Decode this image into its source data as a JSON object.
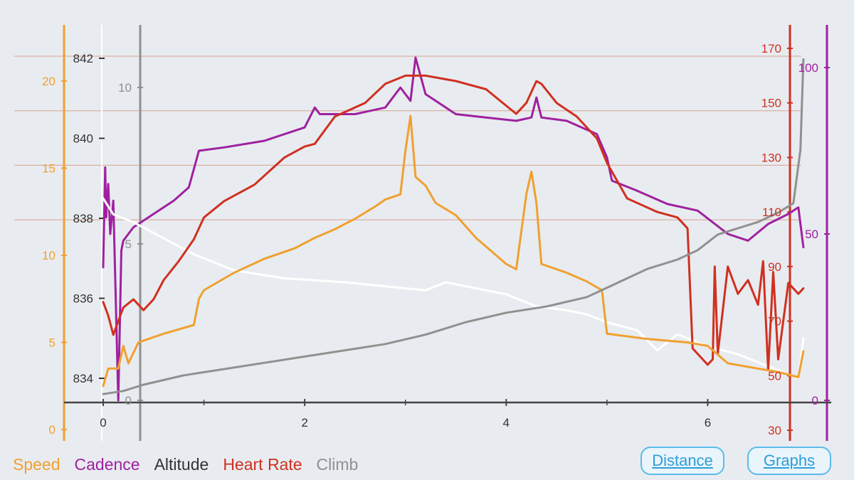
{
  "colors": {
    "speed": "#f0a030",
    "cadence": "#a020a0",
    "altitude": "#333333",
    "heart_rate": "#d03020",
    "climb": "#909090",
    "white_trace": "#ffffff",
    "button": "#2a9fd8"
  },
  "legend": [
    {
      "key": "speed",
      "label": "Speed"
    },
    {
      "key": "cadence",
      "label": "Cadence"
    },
    {
      "key": "altitude",
      "label": "Altitude"
    },
    {
      "key": "heart_rate",
      "label": "Heart Rate"
    },
    {
      "key": "climb",
      "label": "Climb"
    }
  ],
  "buttons": {
    "distance": "Distance",
    "graphs": "Graphs"
  },
  "chart_data": {
    "type": "line",
    "x_axis": {
      "range": [
        0,
        7
      ],
      "ticks": [
        0,
        2,
        4,
        6
      ],
      "labels": [
        "0",
        "2",
        "4",
        "6"
      ]
    },
    "axes": {
      "speed": {
        "range": [
          0,
          23
        ],
        "ticks": [
          0,
          5,
          10,
          15,
          20
        ]
      },
      "altitude": {
        "range": [
          832.5,
          843.2
        ],
        "ticks": [
          834,
          836,
          838,
          840,
          842
        ]
      },
      "climb": {
        "range": [
          0,
          11
        ],
        "ticks": [
          0,
          5,
          10
        ]
      },
      "heart_rate": {
        "range": [
          24,
          182
        ],
        "ticks": [
          30,
          50,
          70,
          90,
          110,
          130,
          150,
          170
        ]
      },
      "cadence": {
        "range": [
          0,
          108
        ],
        "ticks": [
          0,
          50,
          100
        ]
      }
    },
    "series": [
      {
        "name": "Cadence",
        "key": "cadence",
        "axis": "cadence",
        "points": [
          [
            0,
            40
          ],
          [
            0.02,
            70
          ],
          [
            0.03,
            55
          ],
          [
            0.05,
            65
          ],
          [
            0.07,
            50
          ],
          [
            0.1,
            60
          ],
          [
            0.15,
            0
          ],
          [
            0.18,
            45
          ],
          [
            0.2,
            48
          ],
          [
            0.3,
            52
          ],
          [
            0.5,
            56
          ],
          [
            0.7,
            60
          ],
          [
            0.85,
            64
          ],
          [
            0.95,
            75
          ],
          [
            1.2,
            76
          ],
          [
            1.6,
            78
          ],
          [
            2.0,
            82
          ],
          [
            2.1,
            88
          ],
          [
            2.15,
            86
          ],
          [
            2.3,
            86
          ],
          [
            2.5,
            86
          ],
          [
            2.8,
            88
          ],
          [
            2.95,
            94
          ],
          [
            3.05,
            90
          ],
          [
            3.1,
            103
          ],
          [
            3.2,
            92
          ],
          [
            3.5,
            86
          ],
          [
            3.8,
            85
          ],
          [
            4.1,
            84
          ],
          [
            4.25,
            85
          ],
          [
            4.3,
            91
          ],
          [
            4.35,
            85
          ],
          [
            4.6,
            84
          ],
          [
            4.9,
            80
          ],
          [
            5.0,
            73
          ],
          [
            5.05,
            66
          ],
          [
            5.3,
            63
          ],
          [
            5.6,
            59
          ],
          [
            5.9,
            57
          ],
          [
            6.2,
            50
          ],
          [
            6.4,
            48
          ],
          [
            6.6,
            53
          ],
          [
            6.8,
            56
          ],
          [
            6.9,
            58
          ],
          [
            6.95,
            46
          ]
        ]
      },
      {
        "name": "Altitude",
        "key": "altitude",
        "axis": "altitude",
        "points": [
          [
            0,
            838.5
          ],
          [
            0.1,
            838.1
          ],
          [
            0.3,
            837.9
          ],
          [
            0.6,
            837.5
          ],
          [
            0.9,
            837.1
          ],
          [
            1.3,
            836.7
          ],
          [
            1.8,
            836.5
          ],
          [
            2.4,
            836.4
          ],
          [
            2.8,
            836.3
          ],
          [
            3.2,
            836.2
          ],
          [
            3.4,
            836.4
          ],
          [
            3.6,
            836.3
          ],
          [
            4.0,
            836.1
          ],
          [
            4.3,
            835.8
          ],
          [
            4.6,
            835.7
          ],
          [
            4.8,
            835.6
          ],
          [
            5.0,
            835.4
          ],
          [
            5.3,
            835.2
          ],
          [
            5.5,
            834.7
          ],
          [
            5.7,
            835.1
          ],
          [
            6.0,
            834.8
          ],
          [
            6.3,
            834.6
          ],
          [
            6.6,
            834.3
          ],
          [
            6.9,
            834.0
          ],
          [
            6.95,
            835.0
          ]
        ]
      },
      {
        "name": "Heart Rate",
        "key": "heart_rate",
        "axis": "heart_rate",
        "points": [
          [
            0,
            77
          ],
          [
            0.05,
            72
          ],
          [
            0.1,
            65
          ],
          [
            0.15,
            70
          ],
          [
            0.2,
            75
          ],
          [
            0.3,
            78
          ],
          [
            0.4,
            74
          ],
          [
            0.5,
            78
          ],
          [
            0.6,
            85
          ],
          [
            0.75,
            92
          ],
          [
            0.9,
            100
          ],
          [
            1.0,
            108
          ],
          [
            1.2,
            114
          ],
          [
            1.5,
            120
          ],
          [
            1.8,
            130
          ],
          [
            2.0,
            134
          ],
          [
            2.1,
            135
          ],
          [
            2.3,
            145
          ],
          [
            2.6,
            150
          ],
          [
            2.8,
            157
          ],
          [
            3.0,
            160
          ],
          [
            3.2,
            160
          ],
          [
            3.5,
            158
          ],
          [
            3.8,
            155
          ],
          [
            4.0,
            149
          ],
          [
            4.1,
            146
          ],
          [
            4.2,
            150
          ],
          [
            4.3,
            158
          ],
          [
            4.35,
            157
          ],
          [
            4.5,
            150
          ],
          [
            4.7,
            145
          ],
          [
            4.9,
            137
          ],
          [
            5.0,
            128
          ],
          [
            5.2,
            115
          ],
          [
            5.5,
            110
          ],
          [
            5.7,
            108
          ],
          [
            5.8,
            104
          ],
          [
            5.85,
            60
          ],
          [
            6.0,
            54
          ],
          [
            6.05,
            56
          ],
          [
            6.07,
            90
          ],
          [
            6.1,
            58
          ],
          [
            6.2,
            90
          ],
          [
            6.3,
            80
          ],
          [
            6.4,
            85
          ],
          [
            6.5,
            76
          ],
          [
            6.55,
            92
          ],
          [
            6.6,
            52
          ],
          [
            6.65,
            88
          ],
          [
            6.7,
            56
          ],
          [
            6.8,
            84
          ],
          [
            6.9,
            80
          ],
          [
            6.95,
            82
          ]
        ]
      },
      {
        "name": "Speed",
        "key": "speed",
        "axis": "speed",
        "points": [
          [
            0,
            2.5
          ],
          [
            0.05,
            3.5
          ],
          [
            0.15,
            3.5
          ],
          [
            0.2,
            4.8
          ],
          [
            0.25,
            3.8
          ],
          [
            0.35,
            5.0
          ],
          [
            0.6,
            5.5
          ],
          [
            0.9,
            6.0
          ],
          [
            0.95,
            7.5
          ],
          [
            1.0,
            8.0
          ],
          [
            1.3,
            9.0
          ],
          [
            1.6,
            9.8
          ],
          [
            1.9,
            10.4
          ],
          [
            2.1,
            11.0
          ],
          [
            2.3,
            11.5
          ],
          [
            2.5,
            12.1
          ],
          [
            2.7,
            12.8
          ],
          [
            2.8,
            13.2
          ],
          [
            2.95,
            13.5
          ],
          [
            3.0,
            16.0
          ],
          [
            3.05,
            18.0
          ],
          [
            3.1,
            14.5
          ],
          [
            3.2,
            14.0
          ],
          [
            3.3,
            13.0
          ],
          [
            3.5,
            12.3
          ],
          [
            3.7,
            11.0
          ],
          [
            4.0,
            9.5
          ],
          [
            4.1,
            9.2
          ],
          [
            4.2,
            13.5
          ],
          [
            4.25,
            14.8
          ],
          [
            4.3,
            13.0
          ],
          [
            4.35,
            9.5
          ],
          [
            4.6,
            9.0
          ],
          [
            4.8,
            8.5
          ],
          [
            4.95,
            8.0
          ],
          [
            5.0,
            5.5
          ],
          [
            5.4,
            5.2
          ],
          [
            5.8,
            5.0
          ],
          [
            6.0,
            4.8
          ],
          [
            6.2,
            3.8
          ],
          [
            6.5,
            3.5
          ],
          [
            6.7,
            3.3
          ],
          [
            6.9,
            3.0
          ],
          [
            6.95,
            4.5
          ]
        ]
      },
      {
        "name": "Climb",
        "key": "climb",
        "axis": "climb",
        "points": [
          [
            0,
            0.2
          ],
          [
            0.2,
            0.3
          ],
          [
            0.4,
            0.5
          ],
          [
            0.8,
            0.8
          ],
          [
            1.2,
            1.0
          ],
          [
            1.6,
            1.2
          ],
          [
            2.0,
            1.4
          ],
          [
            2.4,
            1.6
          ],
          [
            2.8,
            1.8
          ],
          [
            3.2,
            2.1
          ],
          [
            3.6,
            2.5
          ],
          [
            4.0,
            2.8
          ],
          [
            4.4,
            3.0
          ],
          [
            4.8,
            3.3
          ],
          [
            5.0,
            3.6
          ],
          [
            5.4,
            4.2
          ],
          [
            5.7,
            4.5
          ],
          [
            5.9,
            4.8
          ],
          [
            6.1,
            5.3
          ],
          [
            6.3,
            5.5
          ],
          [
            6.5,
            5.7
          ],
          [
            6.7,
            6.0
          ],
          [
            6.85,
            6.3
          ],
          [
            6.92,
            8.0
          ],
          [
            6.95,
            10.9
          ]
        ]
      }
    ]
  }
}
